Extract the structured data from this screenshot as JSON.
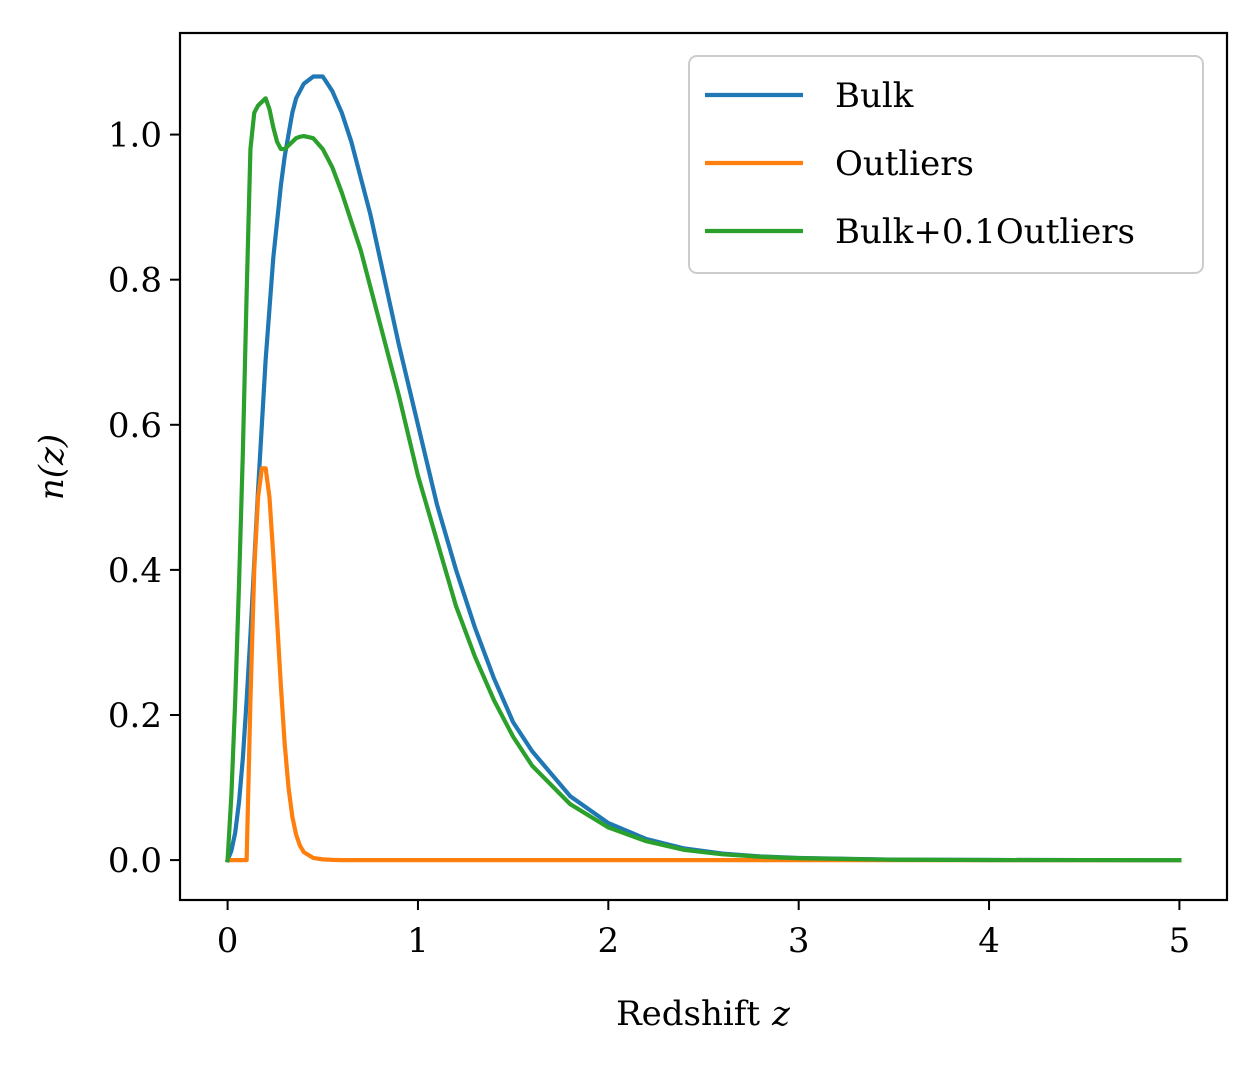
{
  "chart_data": {
    "type": "line",
    "xlabel": "Redshift",
    "xlabel_var": "z",
    "ylabel": "n(z)",
    "xlim": [
      -0.25,
      5.25
    ],
    "ylim": [
      -0.055,
      1.14
    ],
    "xticks": [
      0,
      1,
      2,
      3,
      4,
      5
    ],
    "xtick_labels": [
      "0",
      "1",
      "2",
      "3",
      "4",
      "5"
    ],
    "yticks": [
      0.0,
      0.2,
      0.4,
      0.6,
      0.8,
      1.0
    ],
    "ytick_labels": [
      "0.0",
      "0.2",
      "0.4",
      "0.6",
      "0.8",
      "1.0"
    ],
    "grid": false,
    "legend_position": "top-right",
    "x": [
      0,
      0.02,
      0.04,
      0.06,
      0.08,
      0.1,
      0.12,
      0.14,
      0.16,
      0.18,
      0.2,
      0.22,
      0.24,
      0.26,
      0.28,
      0.3,
      0.32,
      0.34,
      0.36,
      0.38,
      0.4,
      0.45,
      0.5,
      0.55,
      0.6,
      0.65,
      0.7,
      0.75,
      0.8,
      0.9,
      1.0,
      1.1,
      1.2,
      1.3,
      1.4,
      1.5,
      1.6,
      1.8,
      2.0,
      2.2,
      2.4,
      2.6,
      2.8,
      3.0,
      3.5,
      4.0,
      4.5,
      5.0
    ],
    "series": [
      {
        "name": "Bulk",
        "color": "#1f77b4",
        "values": [
          0,
          0.013,
          0.038,
          0.08,
          0.14,
          0.22,
          0.31,
          0.41,
          0.51,
          0.6,
          0.69,
          0.76,
          0.83,
          0.88,
          0.93,
          0.97,
          1.0,
          1.03,
          1.05,
          1.06,
          1.07,
          1.08,
          1.08,
          1.06,
          1.03,
          0.99,
          0.94,
          0.89,
          0.83,
          0.71,
          0.6,
          0.49,
          0.4,
          0.32,
          0.25,
          0.19,
          0.15,
          0.088,
          0.051,
          0.029,
          0.016,
          0.009,
          0.005,
          0.003,
          0.0006,
          0.0001,
          2e-05,
          0
        ]
      },
      {
        "name": "Outliers",
        "color": "#ff7f0e",
        "values": [
          0,
          0,
          0,
          0,
          0,
          0,
          0.22,
          0.4,
          0.5,
          0.54,
          0.54,
          0.5,
          0.42,
          0.33,
          0.24,
          0.16,
          0.1,
          0.06,
          0.035,
          0.02,
          0.011,
          0.003,
          0.001,
          0.0003,
          0,
          0,
          0,
          0,
          0,
          0,
          0,
          0,
          0,
          0,
          0,
          0,
          0,
          0,
          0,
          0,
          0,
          0,
          0,
          0,
          0,
          0,
          0,
          0
        ]
      },
      {
        "name": "Bulk+0.1Outliers",
        "color": "#2ca02c",
        "values": [
          0,
          0.09,
          0.22,
          0.38,
          0.56,
          0.78,
          0.98,
          1.03,
          1.04,
          1.045,
          1.05,
          1.035,
          1.01,
          0.99,
          0.98,
          0.98,
          0.985,
          0.99,
          0.995,
          0.997,
          0.998,
          0.995,
          0.98,
          0.955,
          0.92,
          0.88,
          0.84,
          0.79,
          0.74,
          0.64,
          0.53,
          0.44,
          0.35,
          0.28,
          0.22,
          0.17,
          0.13,
          0.077,
          0.045,
          0.026,
          0.014,
          0.008,
          0.0045,
          0.0025,
          0.0005,
          0.0001,
          2e-05,
          0
        ]
      }
    ]
  }
}
